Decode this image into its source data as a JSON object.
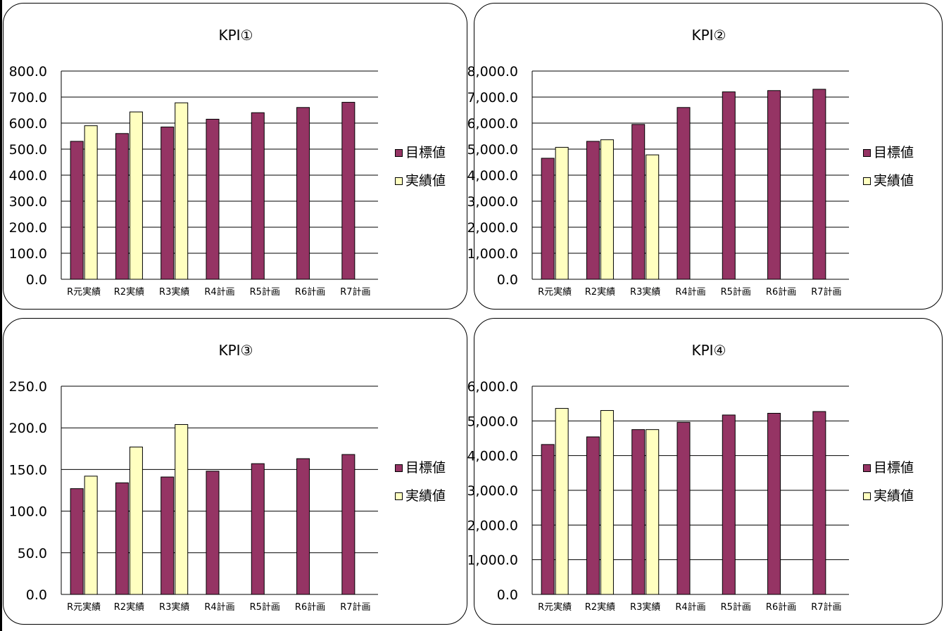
{
  "legend": {
    "target_label": "目標値",
    "actual_label": "実績値"
  },
  "colors": {
    "target": "#953464",
    "actual": "#ffffc0",
    "stroke": "#000000"
  },
  "chart_data": [
    {
      "type": "bar",
      "title": "KPI①",
      "categories": [
        "R元実績",
        "R2実績",
        "R3実績",
        "R4計画",
        "R5計画",
        "R6計画",
        "R7計画"
      ],
      "series": [
        {
          "name": "目標値",
          "values": [
            530,
            560,
            585,
            615,
            640,
            660,
            680
          ]
        },
        {
          "name": "実績値",
          "values": [
            590,
            643,
            678,
            null,
            null,
            null,
            null
          ]
        }
      ],
      "ylim": [
        0,
        800
      ],
      "ticks": [
        "0.0",
        "100.0",
        "200.0",
        "300.0",
        "400.0",
        "500.0",
        "600.0",
        "700.0",
        "800.0"
      ],
      "grid": true,
      "legend_position": "right"
    },
    {
      "type": "bar",
      "title": "KPI②",
      "categories": [
        "R元実績",
        "R2実績",
        "R3実績",
        "R4計画",
        "R5計画",
        "R6計画",
        "R7計画"
      ],
      "series": [
        {
          "name": "目標値",
          "values": [
            4650,
            5300,
            5950,
            6600,
            7200,
            7250,
            7300
          ]
        },
        {
          "name": "実績値",
          "values": [
            5070,
            5360,
            4780,
            null,
            null,
            null,
            null
          ]
        }
      ],
      "ylim": [
        0,
        8000
      ],
      "ticks": [
        "0.0",
        "1,000.0",
        "2,000.0",
        "3,000.0",
        "4,000.0",
        "5,000.0",
        "6,000.0",
        "7,000.0",
        "8,000.0"
      ],
      "grid": true,
      "legend_position": "right"
    },
    {
      "type": "bar",
      "title": "KPI③",
      "categories": [
        "R元実績",
        "R2実績",
        "R3実績",
        "R4計画",
        "R5計画",
        "R6計画",
        "R7計画"
      ],
      "series": [
        {
          "name": "目標値",
          "values": [
            127,
            134,
            141,
            148,
            157,
            163,
            168
          ]
        },
        {
          "name": "実績値",
          "values": [
            142,
            177,
            204,
            null,
            null,
            null,
            null
          ]
        }
      ],
      "ylim": [
        0,
        250
      ],
      "ticks": [
        "0.0",
        "50.0",
        "100.0",
        "150.0",
        "200.0",
        "250.0"
      ],
      "grid": true,
      "legend_position": "right"
    },
    {
      "type": "bar",
      "title": "KPI④",
      "categories": [
        "R元実績",
        "R2実績",
        "R3実績",
        "R4計画",
        "R5計画",
        "R6計画",
        "R7計画"
      ],
      "series": [
        {
          "name": "目標値",
          "values": [
            4320,
            4540,
            4750,
            4960,
            5170,
            5220,
            5270
          ]
        },
        {
          "name": "実績値",
          "values": [
            5360,
            5300,
            4750,
            null,
            null,
            null,
            null
          ]
        }
      ],
      "ylim": [
        0,
        6000
      ],
      "ticks": [
        "0.0",
        "1,000.0",
        "2,000.0",
        "3,000.0",
        "4,000.0",
        "5,000.0",
        "6,000.0"
      ],
      "grid": true,
      "legend_position": "right"
    }
  ]
}
